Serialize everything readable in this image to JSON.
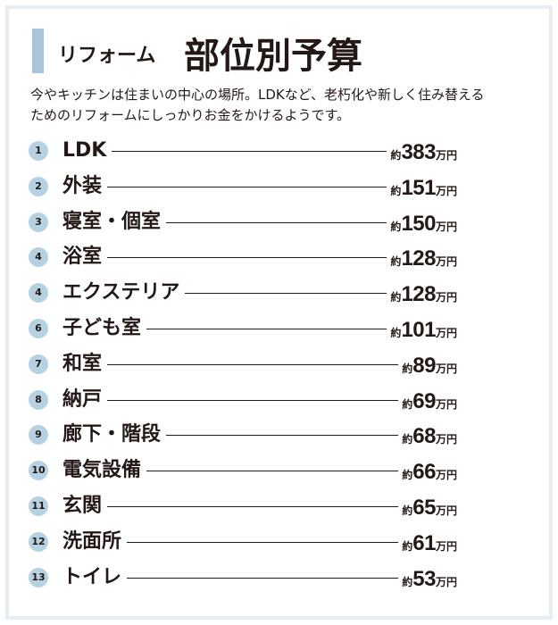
{
  "title": {
    "prefix": "リフォーム",
    "main": "部位別予算"
  },
  "intro": [
    "今やキッチンは住まいの中心の場所。LDKなど、老朽化や新しく住み替える",
    "ためのリフォームにしっかりお金をかけるようです。"
  ],
  "price_prefix": "約",
  "price_unit": "万円",
  "ranking": [
    {
      "rank": "1",
      "name": "LDK",
      "amount": "383"
    },
    {
      "rank": "2",
      "name": "外装",
      "amount": "151"
    },
    {
      "rank": "3",
      "name": "寝室・個室",
      "amount": "150"
    },
    {
      "rank": "4",
      "name": "浴室",
      "amount": "128"
    },
    {
      "rank": "4",
      "name": "エクステリア",
      "amount": "128"
    },
    {
      "rank": "6",
      "name": "子ども室",
      "amount": "101"
    },
    {
      "rank": "7",
      "name": "和室",
      "amount": "89"
    },
    {
      "rank": "8",
      "name": "納戸",
      "amount": "69"
    },
    {
      "rank": "9",
      "name": "廊下・階段",
      "amount": "68"
    },
    {
      "rank": "10",
      "name": "電気設備",
      "amount": "66"
    },
    {
      "rank": "11",
      "name": "玄関",
      "amount": "65"
    },
    {
      "rank": "12",
      "name": "洗面所",
      "amount": "61"
    },
    {
      "rank": "13",
      "name": "トイレ",
      "amount": "53"
    }
  ],
  "colors": {
    "accent": "#a8c6d8",
    "badge": "#b6d2e2",
    "border": "#e6eef3",
    "text": "#231815"
  }
}
